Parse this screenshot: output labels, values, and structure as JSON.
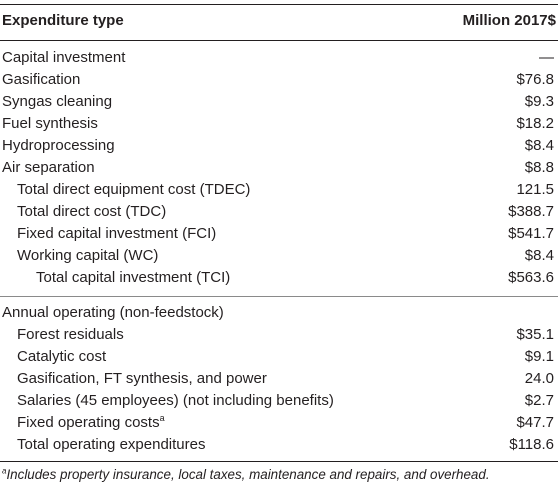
{
  "header": {
    "col_type": "Expenditure type",
    "col_value": "Million 2017$"
  },
  "capital_section": {
    "label": "Capital investment",
    "value": "—",
    "rows": [
      {
        "label": "Gasification",
        "value": "$76.8"
      },
      {
        "label": "Syngas cleaning",
        "value": "$9.3"
      },
      {
        "label": "Fuel synthesis",
        "value": "$18.2"
      },
      {
        "label": "Hydroprocessing",
        "value": "$8.4"
      },
      {
        "label": "Air separation",
        "value": "$8.8"
      },
      {
        "label": "Total direct equipment cost (TDEC)",
        "value": "121.5"
      },
      {
        "label": "Total direct cost (TDC)",
        "value": "$388.7"
      },
      {
        "label": "Fixed capital investment (FCI)",
        "value": "$541.7"
      },
      {
        "label": "Working capital (WC)",
        "value": "$8.4"
      },
      {
        "label": "Total capital investment (TCI)",
        "value": "$563.6"
      }
    ]
  },
  "operating_section": {
    "label": "Annual operating (non-feedstock)",
    "rows": [
      {
        "label": "Forest residuals",
        "value": "$35.1"
      },
      {
        "label": "Catalytic cost",
        "value": "$9.1"
      },
      {
        "label": "Gasification, FT synthesis, and power",
        "value": "24.0"
      },
      {
        "label": "Salaries (45 employees) (not including benefits)",
        "value": "$2.7"
      },
      {
        "label": "Fixed operating costs",
        "label_sup": "a",
        "value": "$47.7"
      },
      {
        "label": "Total operating expenditures",
        "value": "$118.6"
      }
    ]
  },
  "footnote": {
    "marker": "a",
    "text": "Includes property insurance, local taxes, maintenance and repairs, and overhead."
  }
}
